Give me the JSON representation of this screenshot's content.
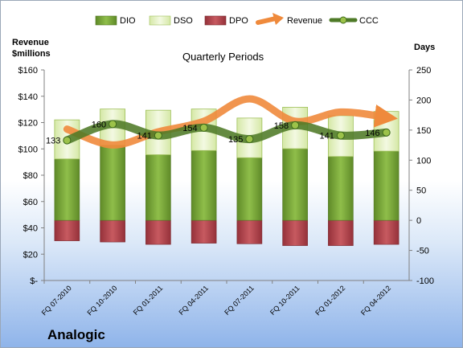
{
  "company": "Analogic",
  "chart_data": {
    "type": "bar",
    "title": "Quarterly Periods",
    "y_left_label": [
      "Revenue",
      "$millions"
    ],
    "y_right_label": "Days",
    "categories": [
      "FQ 07-2010",
      "FQ 10-2010",
      "FQ 01-2011",
      "FQ 04-2011",
      "FQ 07-2011",
      "FQ 10-2011",
      "FQ 01-2012",
      "FQ 04-2012"
    ],
    "y_left_ticks": [
      "$-",
      "$20",
      "$40",
      "$60",
      "$80",
      "$100",
      "$120",
      "$140",
      "$160"
    ],
    "y_left_range": [
      0,
      160
    ],
    "y_right_ticks": [
      "-100",
      "-50",
      "0",
      "50",
      "100",
      "150",
      "200",
      "250"
    ],
    "y_right_range": [
      -100,
      250
    ],
    "grid": false,
    "legend_position": "top",
    "legend": [
      "DIO",
      "DSO",
      "DPO",
      "Revenue",
      "CCC"
    ],
    "series": [
      {
        "name": "DIO",
        "axis": "right",
        "stacked": true,
        "color": "#7aa83a",
        "values": [
          102,
          125,
          109,
          116,
          104,
          119,
          106,
          115
        ]
      },
      {
        "name": "DSO",
        "axis": "right",
        "stacked": true,
        "color": "#e6f2c8",
        "values": [
          65,
          60,
          74,
          69,
          66,
          69,
          68,
          66
        ]
      },
      {
        "name": "DPO",
        "axis": "right",
        "stacked": true,
        "color": "#b4454d",
        "values": [
          -34,
          -36,
          -40,
          -38,
          -39,
          -42,
          -42,
          -40
        ]
      },
      {
        "name": "Revenue",
        "axis": "left",
        "type": "line",
        "color": "#ef8a3c",
        "values": [
          115,
          103,
          113,
          121,
          138,
          121,
          128,
          124
        ]
      },
      {
        "name": "CCC",
        "axis": "right",
        "type": "line",
        "color": "#4e7a27",
        "values": [
          133,
          160,
          141,
          154,
          135,
          158,
          141,
          146
        ],
        "labels": [
          "133",
          "160",
          "141",
          "154",
          "135",
          "158",
          "141",
          "146"
        ]
      }
    ]
  },
  "colors": {
    "dio": "#7aa83a",
    "dso": "#e6f2c8",
    "dpo": "#b4454d",
    "revenue": "#ef8a3c",
    "ccc": "#4e7a27",
    "ccc_marker": "#9cc24a"
  }
}
